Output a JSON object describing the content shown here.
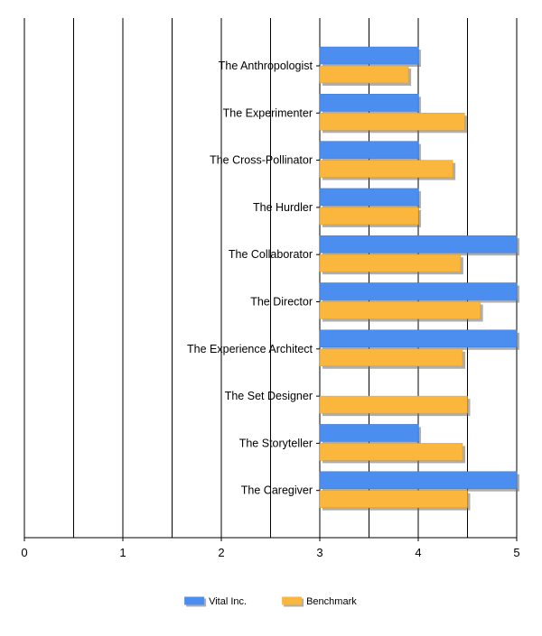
{
  "chart_data": {
    "type": "bar",
    "orientation": "horizontal",
    "categories": [
      "The Anthropologist",
      "The Experimenter",
      "The Cross-Pollinator",
      "The Hurdler",
      "The Collaborator",
      "The Director",
      "The Experience Architect",
      "The Set Designer",
      "The Storyteller",
      "The Caregiver"
    ],
    "series": [
      {
        "name": "Vital Inc.",
        "color": "#4c8ef0",
        "values": [
          4.0,
          4.0,
          4.0,
          4.0,
          5.0,
          5.0,
          5.0,
          null,
          4.0,
          5.0
        ]
      },
      {
        "name": "Benchmark",
        "color": "#fbb73d",
        "values": [
          3.9,
          4.47,
          4.35,
          4.0,
          4.43,
          4.63,
          4.45,
          4.5,
          4.45,
          4.5
        ]
      }
    ],
    "xlim": [
      0,
      5
    ],
    "x_ticks": [
      "0",
      "1",
      "2",
      "3",
      "4",
      "5"
    ],
    "gridlines": [
      0,
      0.5,
      1,
      1.5,
      2,
      2.5,
      3,
      3.5,
      4,
      4.5,
      5
    ],
    "grid": true,
    "legend_position": "bottom-center",
    "bar_style": "3d-shadow"
  }
}
